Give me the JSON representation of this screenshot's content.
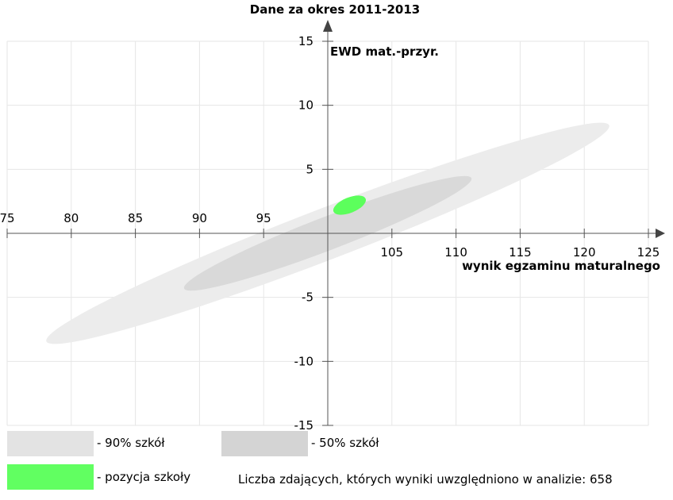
{
  "chart_data": {
    "type": "scatter",
    "title": "Dane za okres 2011-2013",
    "xlabel": "wynik egzaminu maturalnego",
    "ylabel": "EWD mat.-przyr.",
    "xlim": [
      75,
      125
    ],
    "ylim": [
      -15,
      15
    ],
    "x_ticks": [
      75,
      80,
      85,
      90,
      95,
      105,
      110,
      115,
      120,
      125
    ],
    "y_ticks": [
      15,
      10,
      5,
      -5,
      -10,
      -15
    ],
    "x_gridlines": [
      75,
      80,
      85,
      90,
      95,
      100,
      105,
      110,
      115,
      120,
      125
    ],
    "y_gridlines": [
      15,
      10,
      5,
      0,
      -5,
      -10,
      -15
    ],
    "grid": true,
    "regions": [
      {
        "name": "90% szkół",
        "color": "#ececec",
        "cx": 100,
        "cy": 0,
        "rx": 23.5,
        "ry": 2.0,
        "angle_deg": -21
      },
      {
        "name": "50% szkół",
        "color": "#d9d9d9",
        "cx": 100,
        "cy": 0,
        "rx": 12.0,
        "ry": 1.3,
        "angle_deg": -21
      },
      {
        "name": "pozycja szkoły",
        "color": "#5cff5c",
        "cx": 101.7,
        "cy": 2.2,
        "rx": 1.35,
        "ry": 0.6,
        "angle_deg": -22
      }
    ]
  },
  "legend": [
    {
      "label": "- 90% szkół",
      "color": "#e3e3e3"
    },
    {
      "label": "- 50% szkół",
      "color": "#d4d4d4"
    },
    {
      "label": "- pozycja szkoły",
      "color": "#61ff61"
    }
  ],
  "note": "Liczba zdających, których wyniki uwzględniono w analizie: 658"
}
